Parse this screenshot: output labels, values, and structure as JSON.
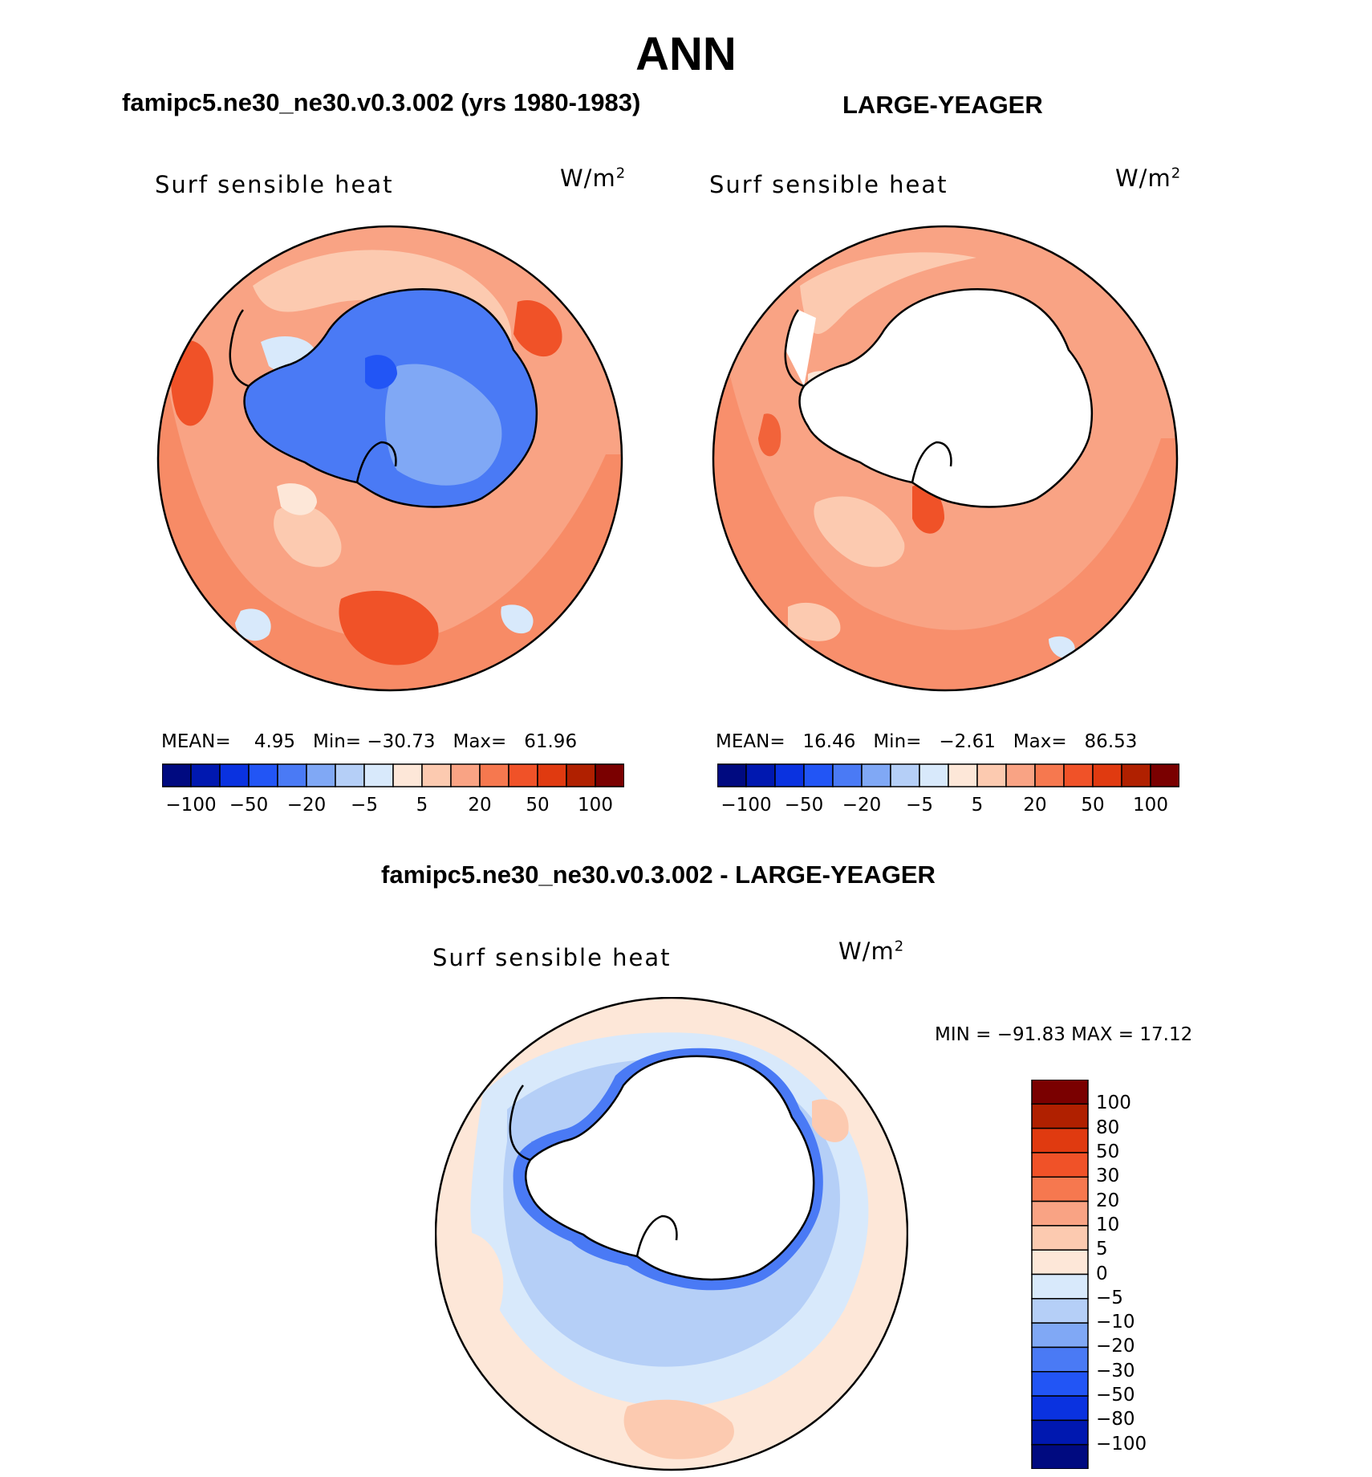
{
  "title": "ANN",
  "panels": [
    {
      "title": "famipc5.ne30_ne30.v0.3.002 (yrs 1980-1983)",
      "variable": "Surf sensible heat",
      "units_base": "W/m",
      "units_exp": "2",
      "stats": {
        "mean_label": "MEAN=",
        "mean": "4.95",
        "min_label": "Min=",
        "min": "−30.73",
        "max_label": "Max=",
        "max": "61.96"
      }
    },
    {
      "title": "LARGE-YEAGER",
      "variable": "Surf sensible heat",
      "units_base": "W/m",
      "units_exp": "2",
      "stats": {
        "mean_label": "MEAN=",
        "mean": "16.46",
        "min_label": "Min=",
        "min": "−2.61",
        "max_label": "Max=",
        "max": "86.53"
      }
    },
    {
      "title": "famipc5.ne30_ne30.v0.3.002 - LARGE-YEAGER",
      "variable": "Surf sensible heat",
      "units_base": "W/m",
      "units_exp": "2",
      "stats_text": "MIN = −91.83  MAX =   17.12"
    }
  ],
  "colorbar_horizontal": {
    "colors": [
      "#000a80",
      "#0018b0",
      "#0a32e0",
      "#2255f5",
      "#4a7af5",
      "#80a8f5",
      "#b5cff7",
      "#d8e9fb",
      "#fde7d8",
      "#fccab0",
      "#f9a384",
      "#f6784f",
      "#f05228",
      "#e03a10",
      "#b02000",
      "#7a0000"
    ],
    "labels": [
      "−100",
      "−50",
      "−20",
      "−5",
      "5",
      "20",
      "50",
      "100"
    ]
  },
  "colorbar_vertical": {
    "colors": [
      "#7a0000",
      "#b02000",
      "#e03a10",
      "#f05228",
      "#f6784f",
      "#f9a384",
      "#fccab0",
      "#fde7d8",
      "#d8e9fb",
      "#b5cff7",
      "#80a8f5",
      "#4a7af5",
      "#2255f5",
      "#0a32e0",
      "#0018b0",
      "#000a80"
    ],
    "labels": [
      "100",
      "80",
      "50",
      "30",
      "20",
      "10",
      "5",
      "0",
      "−5",
      "−10",
      "−20",
      "−30",
      "−50",
      "−80",
      "−100"
    ]
  },
  "map_colors": {
    "warm_bg": "#f9a384",
    "warm_mid": "#f6784f",
    "warm_strong": "#f05228",
    "warm_light": "#fccab0",
    "warm_faint": "#fde7d8",
    "cool_faint": "#d8e9fb",
    "cool_light": "#b5cff7",
    "cool_mid": "#80a8f5",
    "cool_strong": "#4a7af5",
    "cool_deep": "#2255f5",
    "land_mask": "#ffffff",
    "coast": "#000000"
  }
}
